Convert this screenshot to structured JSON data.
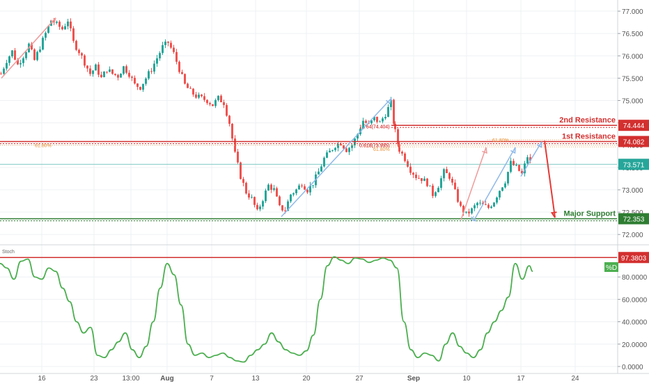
{
  "chart_data": [
    {
      "type": "candlestick",
      "ylim": [
        71.8,
        77.25
      ],
      "y_ticks": [
        "77.000",
        "76.500",
        "76.000",
        "75.500",
        "75.000",
        "74.500",
        "74.000",
        "73.500",
        "73.000",
        "72.500",
        "72.000"
      ],
      "x_ticks": [
        "16",
        "23",
        "13:00",
        "Aug",
        "7",
        "13",
        "20",
        "27",
        "Sep",
        "10",
        "17",
        "24"
      ],
      "price_path": [
        [
          0,
          75.6
        ],
        [
          8,
          75.9
        ],
        [
          16,
          76.1
        ],
        [
          24,
          75.8
        ],
        [
          32,
          76.0
        ],
        [
          40,
          76.25
        ],
        [
          48,
          75.9
        ],
        [
          56,
          76.2
        ],
        [
          64,
          76.5
        ],
        [
          72,
          76.8
        ],
        [
          80,
          76.7
        ],
        [
          88,
          76.6
        ],
        [
          96,
          76.8
        ],
        [
          104,
          76.3
        ],
        [
          112,
          76.1
        ],
        [
          120,
          75.85
        ],
        [
          128,
          75.6
        ],
        [
          136,
          75.75
        ],
        [
          144,
          75.5
        ],
        [
          152,
          75.7
        ],
        [
          160,
          75.6
        ],
        [
          168,
          75.55
        ],
        [
          176,
          75.75
        ],
        [
          184,
          75.6
        ],
        [
          192,
          75.35
        ],
        [
          200,
          75.3
        ],
        [
          208,
          75.5
        ],
        [
          216,
          75.7
        ],
        [
          224,
          75.95
        ],
        [
          232,
          76.2
        ],
        [
          240,
          76.3
        ],
        [
          248,
          76.05
        ],
        [
          256,
          75.7
        ],
        [
          264,
          75.35
        ],
        [
          272,
          75.2
        ],
        [
          280,
          75.1
        ],
        [
          288,
          75.05
        ],
        [
          296,
          75.0
        ],
        [
          304,
          74.9
        ],
        [
          312,
          75.05
        ],
        [
          320,
          74.95
        ],
        [
          328,
          74.5
        ],
        [
          336,
          73.8
        ],
        [
          344,
          73.3
        ],
        [
          352,
          72.95
        ],
        [
          360,
          72.8
        ],
        [
          368,
          72.5
        ],
        [
          376,
          72.8
        ],
        [
          384,
          73.1
        ],
        [
          392,
          73.0
        ],
        [
          400,
          72.6
        ],
        [
          408,
          72.55
        ],
        [
          416,
          72.9
        ],
        [
          424,
          73.0
        ],
        [
          432,
          73.15
        ],
        [
          440,
          73.0
        ],
        [
          448,
          73.15
        ],
        [
          456,
          73.4
        ],
        [
          464,
          73.7
        ],
        [
          472,
          73.85
        ],
        [
          480,
          74.0
        ],
        [
          488,
          74.05
        ],
        [
          496,
          73.9
        ],
        [
          504,
          74.0
        ],
        [
          512,
          74.25
        ],
        [
          520,
          74.55
        ],
        [
          528,
          74.45
        ],
        [
          536,
          74.6
        ],
        [
          544,
          74.5
        ],
        [
          552,
          74.7
        ],
        [
          560,
          74.95
        ],
        [
          566,
          74.3
        ],
        [
          572,
          73.9
        ],
        [
          580,
          73.7
        ],
        [
          588,
          73.45
        ],
        [
          596,
          73.3
        ],
        [
          604,
          73.25
        ],
        [
          612,
          73.15
        ],
        [
          620,
          72.9
        ],
        [
          628,
          73.1
        ],
        [
          636,
          73.4
        ],
        [
          644,
          73.3
        ],
        [
          652,
          72.95
        ],
        [
          660,
          72.6
        ],
        [
          668,
          72.45
        ],
        [
          676,
          72.55
        ],
        [
          684,
          72.7
        ],
        [
          692,
          72.65
        ],
        [
          700,
          72.6
        ],
        [
          708,
          72.75
        ],
        [
          716,
          73.0
        ],
        [
          724,
          73.2
        ],
        [
          732,
          73.6
        ],
        [
          740,
          73.5
        ],
        [
          748,
          73.35
        ],
        [
          756,
          73.75
        ],
        [
          762,
          73.55
        ]
      ],
      "horizontal_levels": [
        {
          "label": "2nd Resistance",
          "value": 74.444,
          "value_label": "74.444",
          "color": "#d32f2f"
        },
        {
          "label": "1st Resistance",
          "value": 74.082,
          "value_label": "74.082",
          "color": "#d32f2f"
        },
        {
          "label": "Major Support",
          "value": 72.353,
          "value_label": "72.353",
          "color": "#2e7d32"
        }
      ],
      "current_price": {
        "value": 73.571,
        "label": "73.571",
        "color": "#26a69a"
      },
      "fib_annotations": [
        "61.80%",
        "1.764(74.404)",
        "0.618(73.995)",
        "61.80%",
        "61.80%"
      ],
      "trend_arrows": "blue AB=CD channels with pink measured-move arrows; red arrow projecting down to Major Support",
      "colors": {
        "up": "#26a69a",
        "down": "#ef5350",
        "resistance": "#d32f2f",
        "support": "#2e7d32"
      }
    },
    {
      "type": "line",
      "indicator": "Stoch",
      "title": "Stoch",
      "ylim": [
        -5,
        105
      ],
      "y_ticks": [
        "80.0000",
        "60.0000",
        "40.0000",
        "20.0000",
        "0.0000"
      ],
      "level": {
        "value": 97.3803,
        "label": "97.3803",
        "color": "#d32f2f"
      },
      "series": [
        {
          "name": "%D",
          "color": "#4caf50",
          "x": [
            0,
            10,
            20,
            30,
            40,
            50,
            60,
            70,
            80,
            90,
            100,
            110,
            120,
            130,
            140,
            150,
            160,
            170,
            180,
            190,
            200,
            210,
            220,
            230,
            240,
            250,
            260,
            270,
            280,
            290,
            300,
            310,
            320,
            330,
            340,
            350,
            360,
            370,
            380,
            390,
            400,
            410,
            420,
            430,
            440,
            450,
            460,
            470,
            480,
            490,
            500,
            510,
            520,
            530,
            540,
            550,
            560,
            570,
            580,
            590,
            600,
            610,
            620,
            630,
            640,
            650,
            660,
            670,
            680,
            690,
            700,
            710,
            720,
            730,
            740,
            750,
            760,
            765
          ],
          "values": [
            92,
            88,
            78,
            94,
            96,
            80,
            78,
            88,
            85,
            70,
            58,
            40,
            30,
            35,
            10,
            8,
            15,
            22,
            30,
            15,
            8,
            18,
            40,
            70,
            92,
            82,
            55,
            20,
            10,
            12,
            8,
            10,
            12,
            8,
            5,
            4,
            10,
            15,
            20,
            30,
            22,
            15,
            12,
            10,
            14,
            28,
            60,
            90,
            98,
            95,
            92,
            97,
            96,
            93,
            95,
            97,
            95,
            88,
            40,
            15,
            8,
            12,
            10,
            5,
            20,
            30,
            18,
            12,
            8,
            15,
            30,
            40,
            50,
            62,
            92,
            78,
            90,
            85
          ]
        }
      ],
      "legend": [
        {
          "name": "%D",
          "color": "#4caf50"
        }
      ]
    }
  ]
}
